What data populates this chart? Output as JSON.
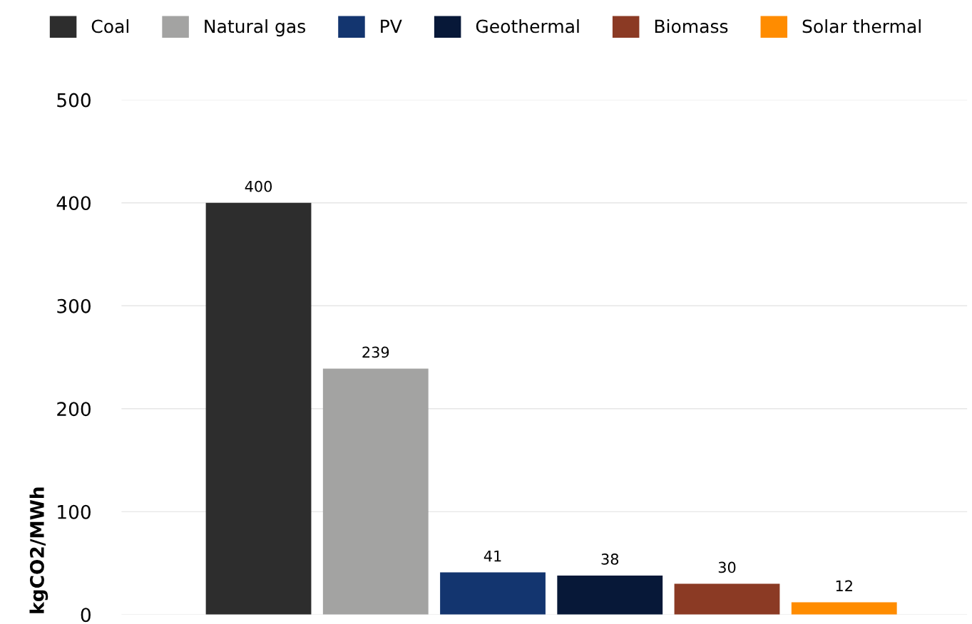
{
  "chart_data": {
    "type": "bar",
    "ylabel": "kgCO2/MWh",
    "categories": [
      null,
      null,
      null,
      null,
      null,
      null
    ],
    "series": [
      {
        "name": "Coal",
        "color": "#2d2d2d",
        "values": [
          400,
          null,
          null,
          null,
          null,
          null
        ]
      },
      {
        "name": "Natural gas",
        "color": "#a3a3a2",
        "values": [
          null,
          239,
          null,
          null,
          null,
          null
        ]
      },
      {
        "name": "PV",
        "color": "#13356f",
        "values": [
          null,
          null,
          41,
          null,
          null,
          null
        ]
      },
      {
        "name": "Geothermal",
        "color": "#071838",
        "values": [
          null,
          null,
          null,
          38,
          null,
          null
        ]
      },
      {
        "name": "Biomass",
        "color": "#8b3a24",
        "values": [
          null,
          null,
          null,
          null,
          30,
          null
        ]
      },
      {
        "name": "Solar thermal",
        "color": "#ff8c00",
        "values": [
          null,
          null,
          null,
          null,
          null,
          12
        ]
      }
    ],
    "ylim": [
      0,
      500
    ],
    "yticks": [
      0,
      100,
      200,
      300,
      400,
      500
    ],
    "grid": "y",
    "legend": "top",
    "data_labels": true,
    "tick_labels": "y"
  }
}
